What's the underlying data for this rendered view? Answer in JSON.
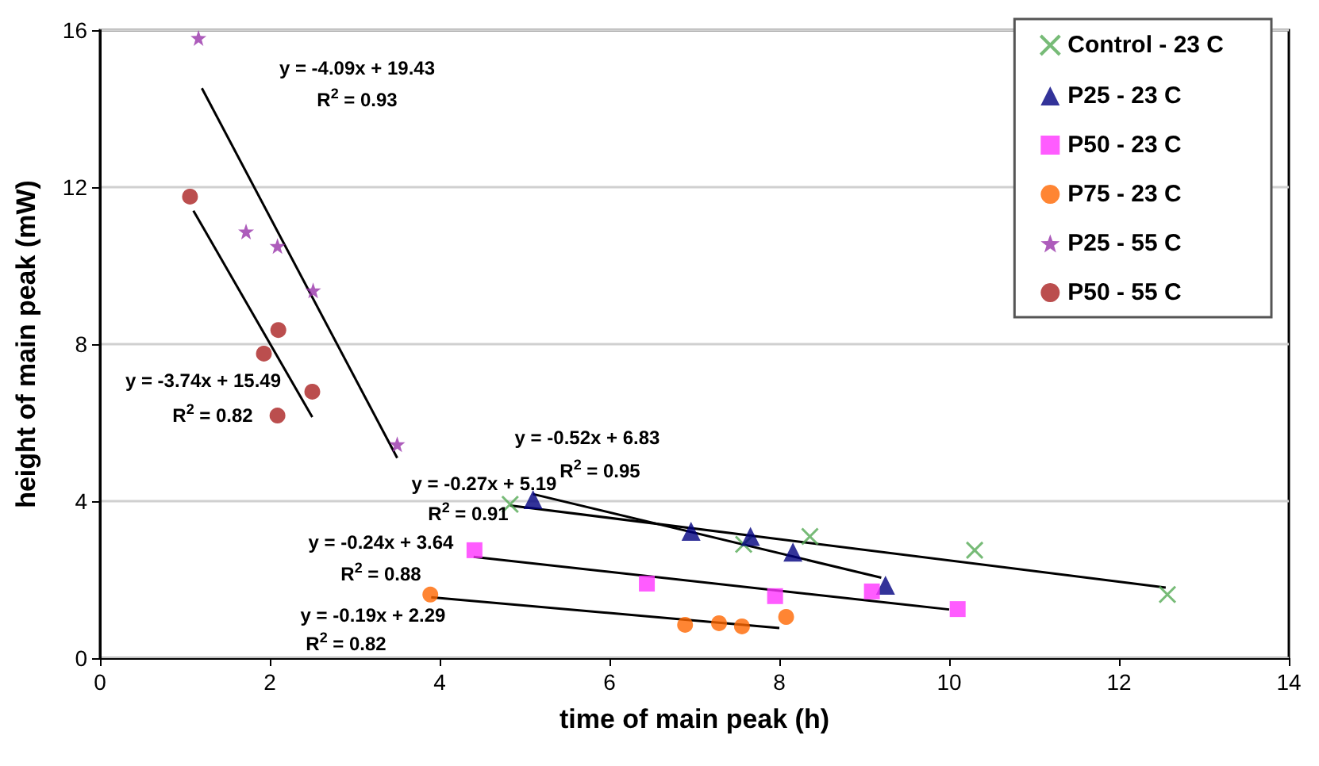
{
  "chart_data": {
    "type": "scatter",
    "xlabel": "time of main peak (h)",
    "ylabel": "height of main peak (mW)",
    "xlim": [
      0,
      14
    ],
    "xticks": [
      0,
      2,
      4,
      6,
      8,
      10,
      12,
      14
    ],
    "ylim": [
      0,
      16
    ],
    "yticks": [
      0,
      4,
      8,
      12,
      16
    ],
    "grid": "y",
    "legend": "top right",
    "series": [
      {
        "name": "Control - 23 C",
        "color": "#55aa55",
        "marker": "cross",
        "x": [
          4.83,
          7.58,
          8.36,
          10.3,
          12.57
        ],
        "values": [
          3.92,
          2.9,
          3.1,
          2.75,
          1.62
        ]
      },
      {
        "name": "P25 - 23 C",
        "color": "#000080",
        "marker": "triangle",
        "x": [
          5.1,
          6.96,
          7.66,
          8.16,
          9.25
        ],
        "values": [
          4.04,
          3.23,
          3.1,
          2.7,
          1.86
        ]
      },
      {
        "name": "P50 - 23 C",
        "color": "#ff33ff",
        "marker": "square",
        "x": [
          4.41,
          6.44,
          7.95,
          9.09,
          10.1
        ],
        "values": [
          2.75,
          1.9,
          1.58,
          1.7,
          1.25
        ]
      },
      {
        "name": "P75 - 23 C",
        "color": "#ff6600",
        "marker": "circle",
        "x": [
          3.89,
          6.89,
          7.29,
          7.56,
          8.08
        ],
        "values": [
          1.62,
          0.85,
          0.89,
          0.81,
          1.05
        ]
      },
      {
        "name": "P25 - 55 C",
        "color": "#9933aa",
        "marker": "star",
        "x": [
          1.16,
          1.72,
          2.09,
          2.51,
          3.5
        ],
        "values": [
          15.8,
          10.87,
          10.5,
          9.37,
          5.45
        ]
      },
      {
        "name": "P50 - 55 C",
        "color": "#aa2222",
        "marker": "circle",
        "x": [
          1.06,
          2.1,
          1.93,
          2.5,
          2.09
        ],
        "values": [
          11.76,
          8.36,
          7.76,
          6.79,
          6.18
        ]
      },
      {
        "type": "line",
        "color": "#000000",
        "marker": "none",
        "x": [
          4.83,
          12.55
        ],
        "values": [
          3.89,
          1.8
        ]
      },
      {
        "type": "line",
        "color": "#000000",
        "marker": "none",
        "x": [
          5.1,
          9.2
        ],
        "values": [
          4.18,
          2.05
        ]
      },
      {
        "type": "line",
        "color": "#000000",
        "marker": "none",
        "x": [
          4.4,
          10.0
        ],
        "values": [
          2.58,
          1.24
        ]
      },
      {
        "type": "line",
        "color": "#000000",
        "marker": "none",
        "x": [
          3.9,
          8.0
        ],
        "values": [
          1.55,
          0.77
        ]
      },
      {
        "type": "line",
        "color": "#000000",
        "marker": "none",
        "x": [
          1.2,
          3.5
        ],
        "values": [
          14.52,
          5.1
        ]
      },
      {
        "type": "line",
        "color": "#000000",
        "marker": "none",
        "x": [
          1.1,
          2.5
        ],
        "values": [
          11.4,
          6.14
        ]
      }
    ],
    "annotations": [
      "y = -4.09x + 19.43",
      "R$^{2}$ = 0.93",
      "y = -3.74x + 15.49",
      "R$^{2}$ = 0.82",
      "y = -0.52x + 6.83",
      "R$^{2}$ = 0.95",
      "y = -0.27x + 5.19",
      "R$^{2}$ = 0.91",
      "y = -0.24x + 3.64",
      "R$^{2}$ = 0.88",
      "y = -0.19x + 2.29",
      "R$^{2}$ = 0.82"
    ]
  }
}
